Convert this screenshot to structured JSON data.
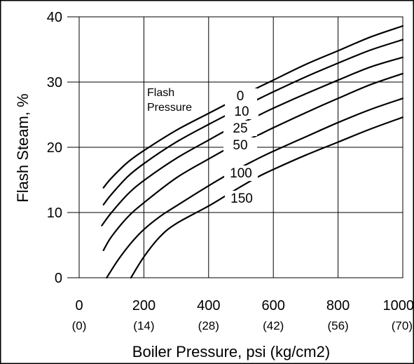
{
  "chart_data": {
    "type": "line",
    "title": "",
    "xlabel": "Boiler Pressure, psi (kg/cm2)",
    "ylabel": "Flash Steam, %",
    "xlim": [
      0,
      1000
    ],
    "ylim": [
      0,
      40
    ],
    "grid": true,
    "x_ticks": [
      {
        "value": 0,
        "label": "0",
        "sublabel": "(0)"
      },
      {
        "value": 200,
        "label": "200",
        "sublabel": "(14)"
      },
      {
        "value": 400,
        "label": "400",
        "sublabel": "(28)"
      },
      {
        "value": 600,
        "label": "600",
        "sublabel": "(42)"
      },
      {
        "value": 800,
        "label": "800",
        "sublabel": "(56)"
      },
      {
        "value": 1000,
        "label": "1000",
        "sublabel": "(70)"
      }
    ],
    "y_ticks": [
      {
        "value": 0,
        "label": "0"
      },
      {
        "value": 10,
        "label": "10"
      },
      {
        "value": 20,
        "label": "20"
      },
      {
        "value": 30,
        "label": "30"
      },
      {
        "value": 40,
        "label": "40"
      }
    ],
    "annotation": [
      "Flash",
      "Pressure"
    ],
    "series": [
      {
        "name": "0",
        "x": [
          75,
          100,
          150,
          200,
          300,
          400,
          470,
          550,
          600,
          700,
          800,
          900,
          1000
        ],
        "y": [
          13.8,
          15.3,
          17.7,
          19.5,
          22.6,
          25.2,
          27.0,
          29.1,
          30.3,
          32.7,
          34.8,
          36.9,
          38.6
        ]
      },
      {
        "name": "10",
        "x": [
          75,
          100,
          150,
          200,
          300,
          400,
          470,
          550,
          600,
          700,
          800,
          900,
          1000
        ],
        "y": [
          11.2,
          12.8,
          15.5,
          17.5,
          20.8,
          23.5,
          25.3,
          27.3,
          28.5,
          30.8,
          32.9,
          34.9,
          36.5
        ]
      },
      {
        "name": "25",
        "x": [
          70,
          100,
          150,
          200,
          300,
          400,
          470,
          550,
          600,
          700,
          800,
          900,
          1000
        ],
        "y": [
          8.0,
          10.0,
          12.8,
          14.9,
          18.3,
          21.1,
          23.0,
          24.8,
          26.0,
          28.2,
          30.3,
          32.3,
          33.8
        ]
      },
      {
        "name": "50",
        "x": [
          75,
          100,
          150,
          200,
          300,
          400,
          470,
          550,
          600,
          700,
          800,
          900,
          1000
        ],
        "y": [
          4.2,
          6.3,
          9.3,
          11.5,
          15.3,
          18.2,
          20.1,
          21.8,
          23.0,
          25.3,
          27.5,
          29.6,
          31.3
        ]
      },
      {
        "name": "100",
        "x": [
          85,
          120,
          160,
          200,
          250,
          300,
          400,
          480,
          550,
          600,
          700,
          800,
          900,
          1000
        ],
        "y": [
          0.0,
          2.7,
          5.3,
          7.4,
          9.4,
          11.0,
          14.1,
          16.4,
          18.2,
          19.4,
          21.6,
          23.8,
          25.8,
          27.5
        ]
      },
      {
        "name": "150",
        "x": [
          160,
          200,
          250,
          300,
          400,
          480,
          550,
          600,
          700,
          800,
          900,
          1000
        ],
        "y": [
          0.0,
          3.2,
          6.3,
          8.3,
          11.0,
          13.4,
          15.4,
          16.6,
          18.8,
          20.8,
          22.8,
          24.6
        ]
      }
    ]
  }
}
